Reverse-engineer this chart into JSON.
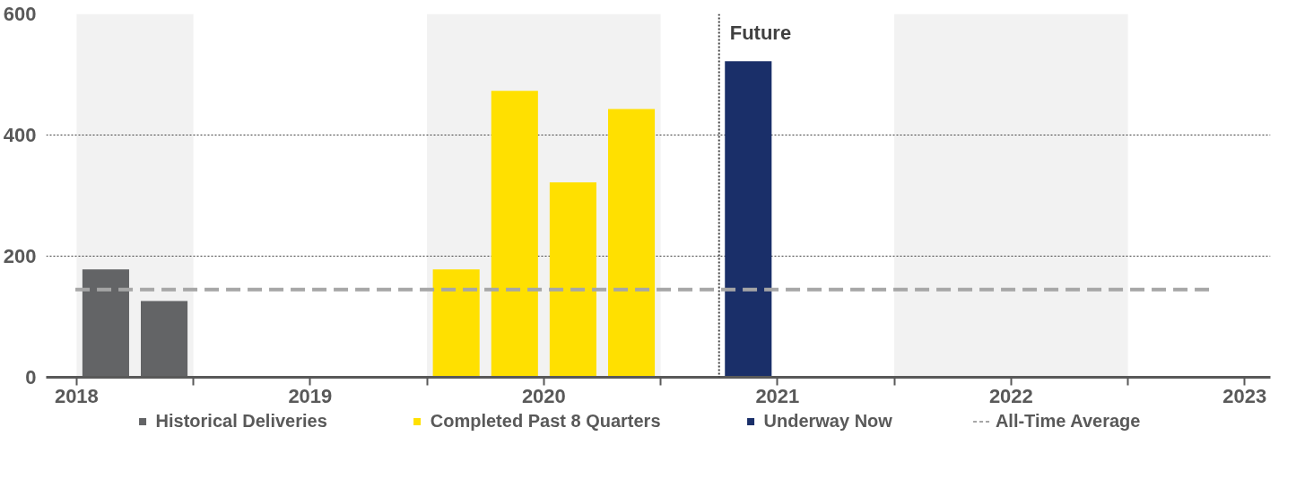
{
  "chart_data": {
    "type": "bar",
    "xlim": [
      2017.87,
      2023.11
    ],
    "xticks": [
      2018,
      {
        "value": 2018.5,
        "label": null
      },
      2019,
      {
        "value": 2019.5,
        "label": null
      },
      2020,
      {
        "value": 2020.5,
        "label": null
      },
      2021,
      {
        "value": 2021.5,
        "label": null
      },
      2022,
      {
        "value": 2022.5,
        "label": null
      },
      2023
    ],
    "ylim": [
      0,
      600
    ],
    "yticks": [
      0,
      200,
      400,
      600
    ],
    "grid": "y",
    "series": [
      {
        "name": "Historical Deliveries",
        "color": "#636466",
        "x": [
          2018.125,
          2018.375
        ],
        "values": [
          178,
          126
        ]
      },
      {
        "name": "Completed Past 8 Quarters",
        "color": "#ffe000",
        "x": [
          2019.625,
          2019.875,
          2020.125,
          2020.375
        ],
        "values": [
          178,
          473,
          322,
          443
        ]
      },
      {
        "name": "Underway Now",
        "color": "#1a2f69",
        "x": [
          2020.875
        ],
        "values": [
          522
        ]
      }
    ],
    "ref_lines": [
      {
        "axis": "y",
        "value": 145,
        "label": "All-Time Average",
        "color": "#a6a6a6",
        "line_style": "dashed"
      },
      {
        "axis": "x",
        "value": 2020.75,
        "label": "Future",
        "color": "#404040",
        "line_style": "dotted"
      }
    ],
    "bands": [
      {
        "axis": "x",
        "from": 2018,
        "to": 2018.5,
        "color": "#f2f2f2"
      },
      {
        "axis": "x",
        "from": 2019.5,
        "to": 2020.5,
        "color": "#f2f2f2"
      },
      {
        "axis": "x",
        "from": 2021.5,
        "to": 2022.5,
        "color": "#f2f2f2"
      }
    ],
    "legend": "bottom"
  }
}
